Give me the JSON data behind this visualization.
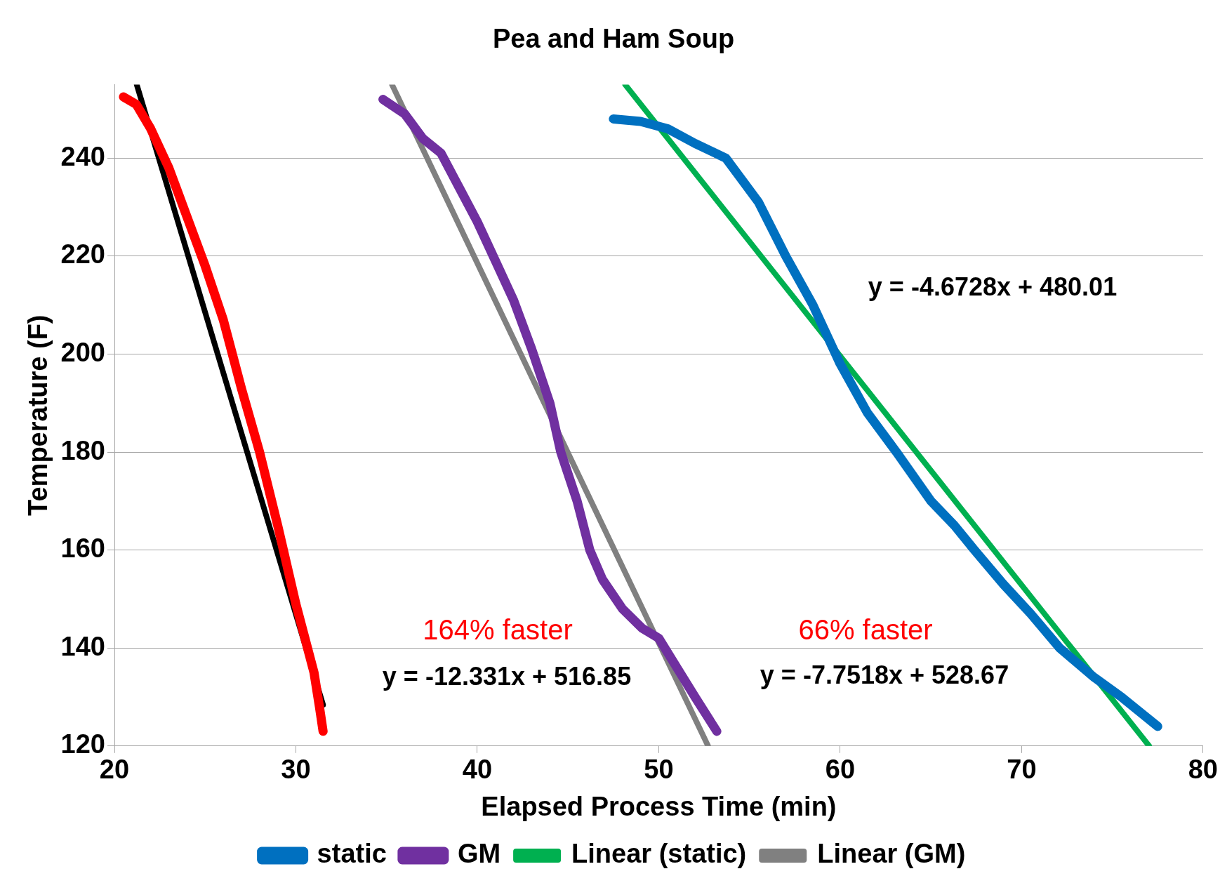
{
  "chart_data": {
    "type": "line",
    "title": "Pea and Ham Soup",
    "xlabel": "Elapsed Process Time (min)",
    "ylabel": "Temperature (F)",
    "xlim": [
      20,
      80
    ],
    "xticks": [
      20,
      30,
      40,
      50,
      60,
      70,
      80
    ],
    "ylim": [
      120,
      255
    ],
    "yticks": [
      120,
      140,
      160,
      180,
      200,
      220,
      240
    ],
    "grid": "y",
    "legend": "bottom",
    "marker": "none",
    "line_style": "solid",
    "series": [
      {
        "name": "static",
        "color": "#0070c0",
        "x": [
          47.5,
          49,
          50.5,
          52,
          53.7,
          55.5,
          57,
          58.5,
          60,
          61.5,
          63.1,
          65,
          66.3,
          67.4,
          69,
          70.5,
          72.1,
          74,
          75.5,
          77.5
        ],
        "values": [
          248,
          247.5,
          246,
          243,
          240,
          231,
          220,
          210,
          198,
          188,
          180,
          170,
          165,
          160,
          153,
          147,
          140,
          134,
          130,
          124
        ]
      },
      {
        "name": "GM",
        "color": "#7030a0",
        "x": [
          34.8,
          36,
          37,
          38,
          39,
          40,
          41,
          42,
          43,
          44,
          44.6,
          45.5,
          46.2,
          46.9,
          48,
          49.1,
          50,
          51,
          52,
          53.2
        ],
        "values": [
          252,
          249,
          244,
          241,
          234,
          227,
          219,
          211,
          201,
          190,
          180,
          170,
          160,
          154,
          148,
          144,
          142,
          136,
          130,
          123
        ]
      },
      {
        "color": "#ff0000",
        "x": [
          20.5,
          21.2,
          22,
          23,
          24,
          25,
          26,
          27,
          28,
          29,
          30,
          31,
          31.3,
          31.5
        ],
        "values": [
          252.5,
          251,
          246,
          238,
          228,
          218,
          207,
          193,
          180,
          165,
          149,
          135,
          128,
          123
        ]
      },
      {
        "name": "Linear (static)",
        "color": "#00b050",
        "x": [
          48.15,
          77.03
        ],
        "values": [
          255,
          120
        ]
      },
      {
        "name": "Linear (GM)",
        "color": "#808080",
        "x": [
          35.3,
          52.72
        ],
        "values": [
          255,
          120
        ]
      },
      {
        "color": "#000000",
        "x": [
          21.23,
          31.5
        ],
        "values": [
          255,
          128.4
        ]
      }
    ],
    "annotations": [
      "164% faster",
      "66% faster",
      "y = -12.331x + 516.85",
      "y = -7.7518x + 528.67",
      "y = -4.6728x + 480.01"
    ]
  }
}
